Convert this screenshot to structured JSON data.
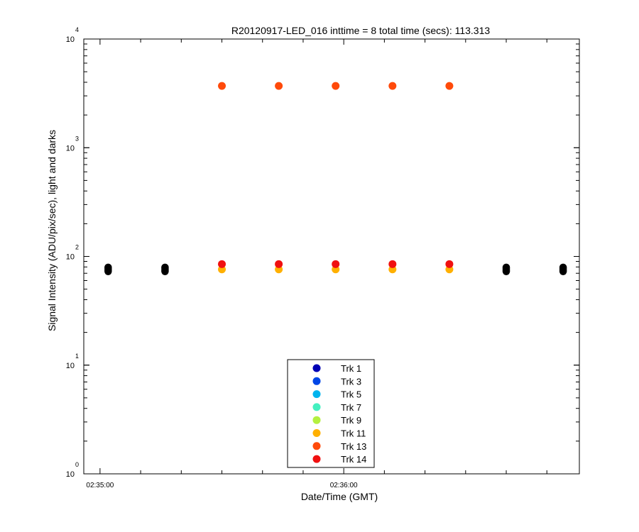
{
  "chart_data": {
    "type": "scatter",
    "title": "R20120917-LED_016 inttime = 8 total time (secs): 113.313",
    "xlabel": "Date/Time (GMT)",
    "ylabel": "Signal Intensity (ADU/pix/sec), light and darks",
    "y_scale": "log",
    "ylim": [
      1,
      10000
    ],
    "y_ticks": [
      {
        "base": "10",
        "exp": "0"
      },
      {
        "base": "10",
        "exp": "1"
      },
      {
        "base": "10",
        "exp": "2"
      },
      {
        "base": "10",
        "exp": "3"
      },
      {
        "base": "10",
        "exp": "4"
      }
    ],
    "xlim": [
      "02:34:56",
      "02:36:58"
    ],
    "x_ticks": [
      "02:35:00",
      "02:36:00"
    ],
    "grid": false,
    "legend_position": "bottom-center",
    "series": [
      {
        "name": "Trk 1",
        "color": "#0000b4",
        "x": [],
        "y": []
      },
      {
        "name": "Trk 3",
        "color": "#0046e6",
        "x": [],
        "y": []
      },
      {
        "name": "Trk 5",
        "color": "#00b4ee",
        "x": [],
        "y": []
      },
      {
        "name": "Trk 7",
        "color": "#44f0c0",
        "x": [],
        "y": []
      },
      {
        "name": "Trk 9",
        "color": "#b4f040",
        "x": [],
        "y": []
      },
      {
        "name": "Trk 11",
        "color": "#ffb000",
        "x": [
          "02:35:30",
          "02:35:44",
          "02:35:58",
          "02:36:12",
          "02:36:26"
        ],
        "y": [
          76,
          76,
          76,
          76,
          76
        ]
      },
      {
        "name": "Trk 13",
        "color": "#ff4a0a",
        "x": [
          "02:35:30",
          "02:35:44",
          "02:35:58",
          "02:36:12",
          "02:36:26"
        ],
        "y": [
          3700,
          3700,
          3700,
          3700,
          3700
        ]
      },
      {
        "name": "Trk 14",
        "color": "#f01010",
        "x": [
          "02:35:30",
          "02:35:44",
          "02:35:58",
          "02:36:12",
          "02:36:26"
        ],
        "y": [
          85,
          85,
          85,
          85,
          85
        ]
      }
    ],
    "darks": {
      "color": "#000000",
      "x": [
        "02:35:02",
        "02:35:16",
        "02:36:40",
        "02:36:54"
      ],
      "y": [
        76,
        76,
        76,
        76
      ]
    }
  }
}
